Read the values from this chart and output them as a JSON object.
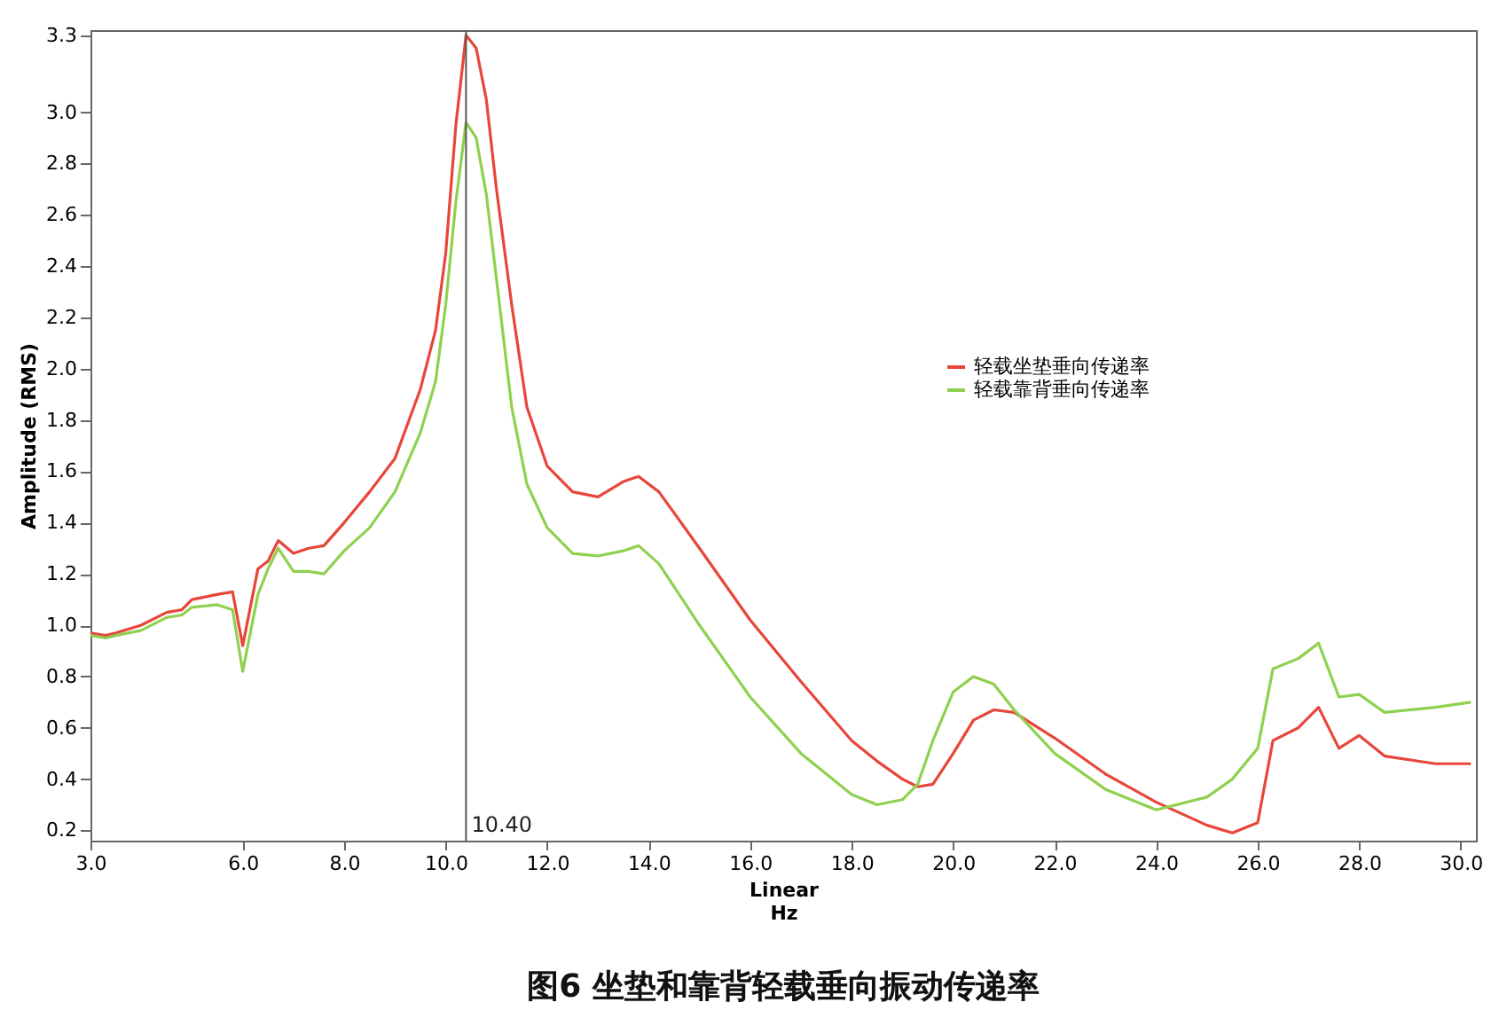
{
  "chart_data": {
    "type": "line",
    "title": "图6 坐垫和靠背轻载垂向振动传递率",
    "xlabel": "Linear\nHz",
    "ylabel": "Amplitude (RMS)",
    "x": [
      3.0,
      3.3,
      3.5,
      4.0,
      4.5,
      4.8,
      5.0,
      5.5,
      5.8,
      6.0,
      6.3,
      6.5,
      6.7,
      7.0,
      7.3,
      7.6,
      8.0,
      8.5,
      9.0,
      9.5,
      9.8,
      10.0,
      10.2,
      10.4,
      10.6,
      10.8,
      11.0,
      11.3,
      11.6,
      12.0,
      12.5,
      13.0,
      13.5,
      13.8,
      14.2,
      15.0,
      16.0,
      17.0,
      18.0,
      18.5,
      19.0,
      19.3,
      19.6,
      20.0,
      20.4,
      20.8,
      21.2,
      22.0,
      23.0,
      24.0,
      25.0,
      25.5,
      26.0,
      26.3,
      26.8,
      27.2,
      27.6,
      28.0,
      28.5,
      29.5,
      30.2
    ],
    "series": [
      {
        "name": "轻载坐垫垂向传递率",
        "color": "#e8463a",
        "values": [
          0.97,
          0.96,
          0.97,
          1.0,
          1.05,
          1.06,
          1.1,
          1.12,
          1.13,
          0.92,
          1.22,
          1.25,
          1.33,
          1.28,
          1.3,
          1.31,
          1.4,
          1.52,
          1.65,
          1.92,
          2.15,
          2.45,
          2.95,
          3.3,
          3.25,
          3.05,
          2.7,
          2.25,
          1.85,
          1.62,
          1.52,
          1.5,
          1.56,
          1.58,
          1.52,
          1.3,
          1.02,
          0.78,
          0.55,
          0.47,
          0.4,
          0.37,
          0.38,
          0.5,
          0.63,
          0.67,
          0.66,
          0.56,
          0.42,
          0.31,
          0.22,
          0.19,
          0.23,
          0.55,
          0.6,
          0.68,
          0.52,
          0.57,
          0.49,
          0.46,
          0.46
        ]
      },
      {
        "name": "轻载靠背垂向传递率",
        "color": "#8fd14f",
        "values": [
          0.96,
          0.95,
          0.96,
          0.98,
          1.03,
          1.04,
          1.07,
          1.08,
          1.06,
          0.82,
          1.12,
          1.22,
          1.3,
          1.21,
          1.21,
          1.2,
          1.29,
          1.38,
          1.52,
          1.75,
          1.95,
          2.25,
          2.65,
          2.96,
          2.9,
          2.68,
          2.35,
          1.85,
          1.55,
          1.38,
          1.28,
          1.27,
          1.29,
          1.31,
          1.24,
          1.0,
          0.72,
          0.5,
          0.34,
          0.3,
          0.32,
          0.38,
          0.55,
          0.74,
          0.8,
          0.77,
          0.67,
          0.5,
          0.36,
          0.28,
          0.33,
          0.4,
          0.52,
          0.83,
          0.87,
          0.93,
          0.72,
          0.73,
          0.66,
          0.68,
          0.7
        ]
      }
    ],
    "xlim": [
      3.0,
      30.3
    ],
    "xticks": [
      {
        "value": 3,
        "label": "3.0"
      },
      {
        "value": 6,
        "label": "6.0"
      },
      {
        "value": 8,
        "label": "8.0"
      },
      {
        "value": 10,
        "label": "10.0"
      },
      {
        "value": 12,
        "label": "12.0"
      },
      {
        "value": 14,
        "label": "14.0"
      },
      {
        "value": 16,
        "label": "16.0"
      },
      {
        "value": 18,
        "label": "18.0"
      },
      {
        "value": 20,
        "label": "20.0"
      },
      {
        "value": 22,
        "label": "22.0"
      },
      {
        "value": 24,
        "label": "24.0"
      },
      {
        "value": 26,
        "label": "26.0"
      },
      {
        "value": 28,
        "label": "28.0"
      },
      {
        "value": 30,
        "label": "30.0"
      }
    ],
    "ylim": [
      0.16,
      3.32
    ],
    "yticks": [
      0.2,
      0.4,
      0.6,
      0.8,
      {
        "value": 1,
        "label": "1.0"
      },
      1.2,
      1.4,
      1.6,
      1.8,
      {
        "value": 2,
        "label": "2.0"
      },
      2.2,
      2.4,
      2.6,
      2.8,
      {
        "value": 3,
        "label": "3.0"
      },
      3.3
    ],
    "ref_lines": [
      {
        "axis": "x",
        "value": 10.4,
        "label": "10.40",
        "color": "#555555"
      }
    ],
    "legend": "top right",
    "grid": false,
    "line_style": "solid",
    "marker": "none"
  }
}
